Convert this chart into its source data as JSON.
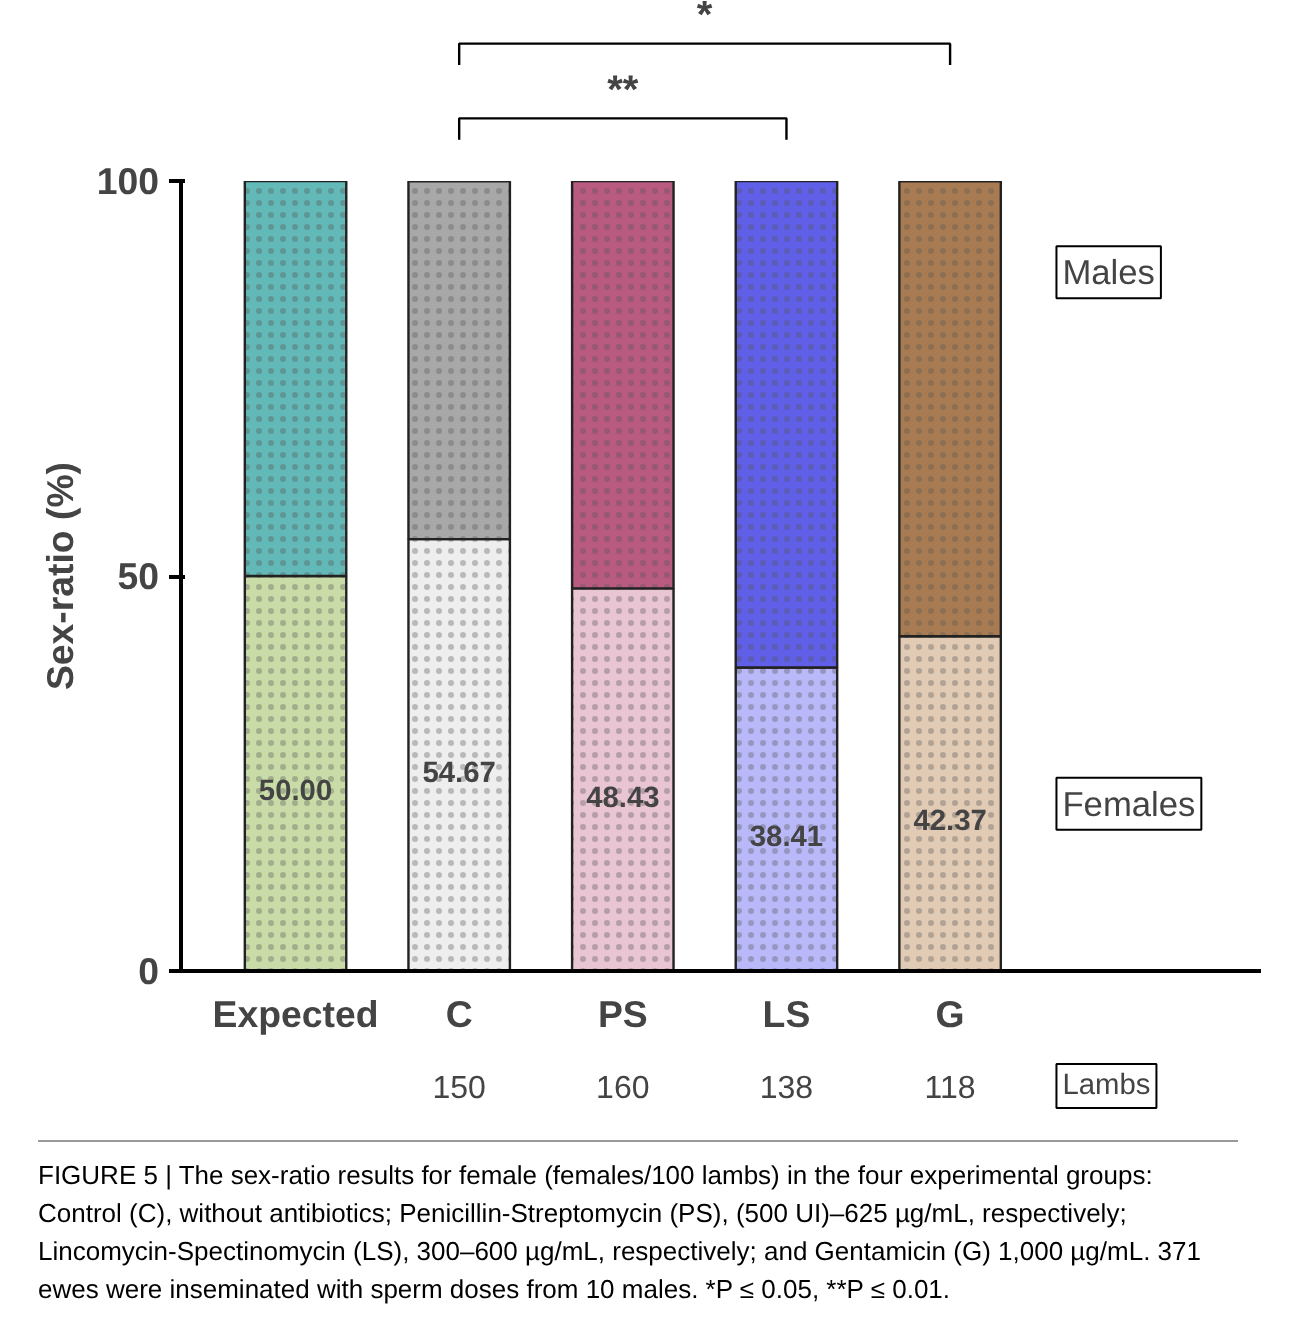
{
  "chart_data": {
    "type": "bar",
    "stacked": true,
    "ylabel": "Sex-ratio (%)",
    "categories": [
      "Expected",
      "C",
      "PS",
      "LS",
      "G"
    ],
    "series": [
      {
        "name": "Females",
        "colors": [
          "#c9dca8",
          "#eeeeee",
          "#e9c4d2",
          "#b9b9f9",
          "#e2cbb5"
        ],
        "values": [
          50.0,
          54.67,
          48.43,
          38.41,
          42.37
        ],
        "value_labels": [
          "50.00",
          "54.67",
          "48.43",
          "38.41",
          "42.37"
        ]
      },
      {
        "name": "Males",
        "colors": [
          "#63b8b8",
          "#a8a8a8",
          "#b95a80",
          "#5f5fe8",
          "#a97b52"
        ],
        "values": [
          50.0,
          45.3,
          51.6,
          61.6,
          57.6
        ]
      }
    ],
    "ylim": [
      0,
      100
    ],
    "yticks": [
      0,
      50,
      100
    ],
    "grid": false,
    "annotations": [
      "**",
      "*",
      "Lambs",
      "150",
      "160",
      "138",
      "118",
      "FIGURE 5 | The sex-ratio results for female (females/100 lambs) in the four experimental groups: Control (C), without antibiotics; Penicillin-Streptomycin (PS), (500 UI)–625 µg/mL, respectively; Lincomycin-Spectinomycin (LS), 300–600 µg/mL, respectively; and Gentamicin (G) 1,000 µg/mL. 371 ewes were inseminated with sperm doses from 10 males. *P ≤ 0.05, **P ≤ 0.01."
    ]
  }
}
